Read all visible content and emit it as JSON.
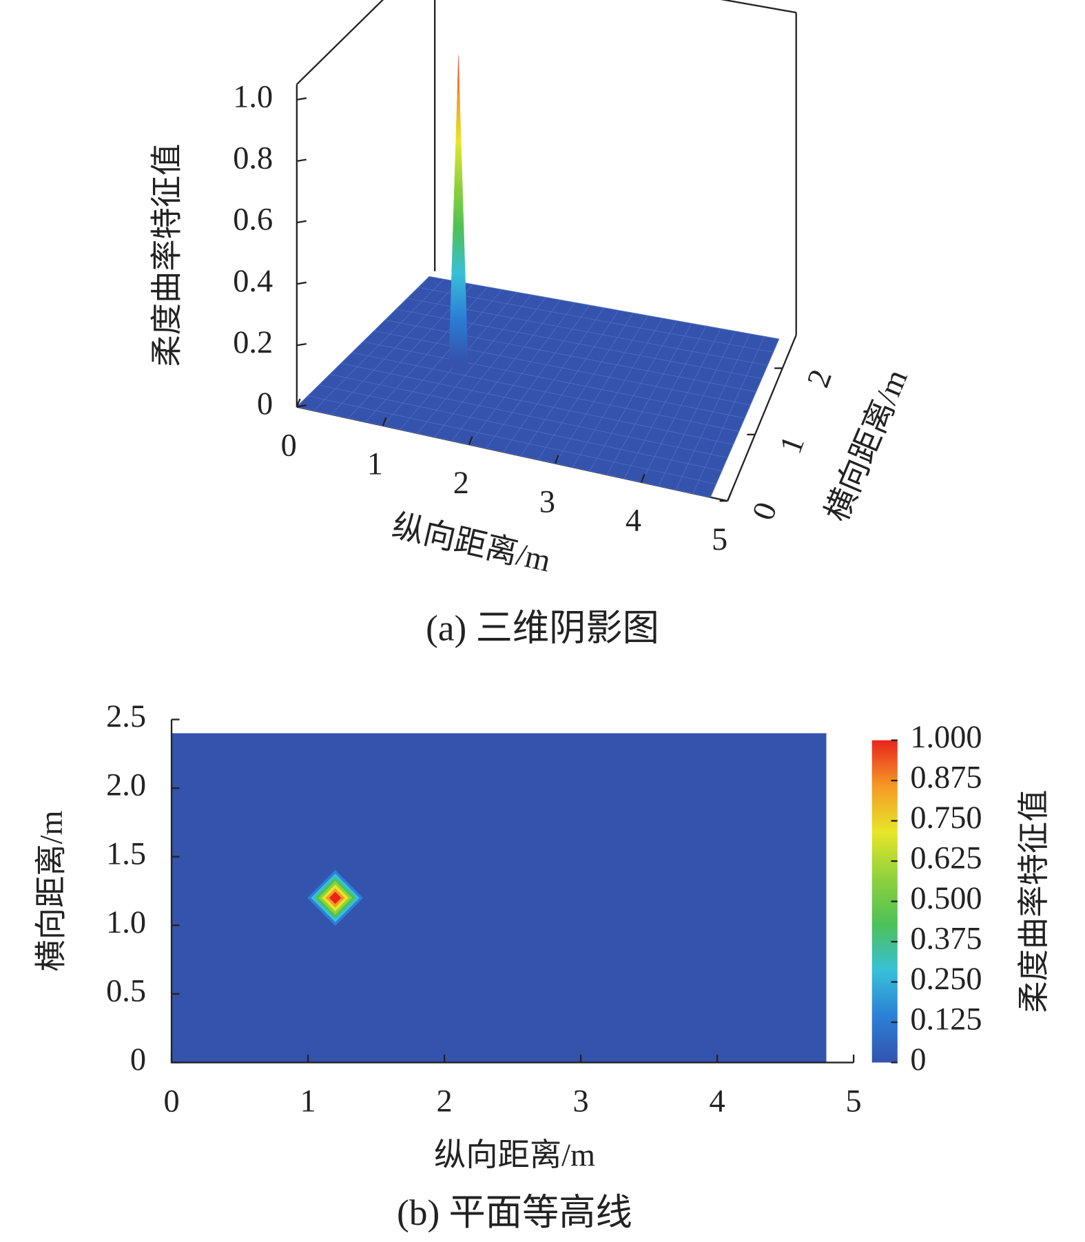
{
  "chart_data": [
    {
      "type": "surface3d",
      "caption": "(a) 三维阴影图",
      "xlabel": "纵向距离/m",
      "ylabel": "横向距离/m",
      "zlabel": "柔度曲率特征值",
      "xlim": [
        0,
        5
      ],
      "ylim": [
        0,
        2.5
      ],
      "zlim": [
        0,
        1.05
      ],
      "xticks": [
        0,
        1,
        2,
        3,
        4,
        5
      ],
      "yticks": [
        0,
        1,
        2
      ],
      "zticks": [
        0,
        0.2,
        0.4,
        0.6,
        0.8,
        {
          "value": 1,
          "label": "1.0"
        }
      ],
      "extent_x": [
        0,
        4.8
      ],
      "extent_y": [
        0,
        2.4
      ],
      "peak_x": 1.2,
      "peak_y": 1.2,
      "peak_value": 1,
      "base_value": 0,
      "colormap": [
        "#3453ad",
        "#2b7fd6",
        "#38c0d8",
        "#4cc158",
        "#8fd13c",
        "#e6e62a",
        "#f59a25",
        "#e8241d"
      ]
    },
    {
      "type": "contour",
      "caption": "(b) 平面等高线",
      "xlabel": "纵向距离/m",
      "ylabel": "横向距离/m",
      "colorbar_label": "柔度曲率特征值",
      "xlim": [
        0,
        5
      ],
      "ylim": [
        0,
        2.5
      ],
      "xticks": [
        0,
        1,
        2,
        3,
        4,
        5
      ],
      "yticks": [
        0,
        0.5,
        {
          "value": 1,
          "label": "1.0"
        },
        1.5,
        {
          "value": 2,
          "label": "2.0"
        },
        2.5
      ],
      "clim": [
        0,
        1
      ],
      "cticks": [
        0,
        0.125,
        {
          "value": 0.25,
          "label": "0.250"
        },
        0.375,
        {
          "value": 0.5,
          "label": "0.500"
        },
        0.625,
        {
          "value": 0.75,
          "label": "0.750"
        },
        0.875,
        {
          "value": 1,
          "label": "1.000"
        }
      ],
      "extent_x": [
        0,
        4.8
      ],
      "extent_y": [
        0,
        2.4
      ],
      "peak_x": 1.2,
      "peak_y": 1.2,
      "peak_value": 1,
      "base_value": 0,
      "colormap": [
        "#3453ad",
        "#2b7fd6",
        "#38c0d8",
        "#4cc158",
        "#8fd13c",
        "#e6e62a",
        "#f59a25",
        "#e8241d"
      ]
    }
  ]
}
